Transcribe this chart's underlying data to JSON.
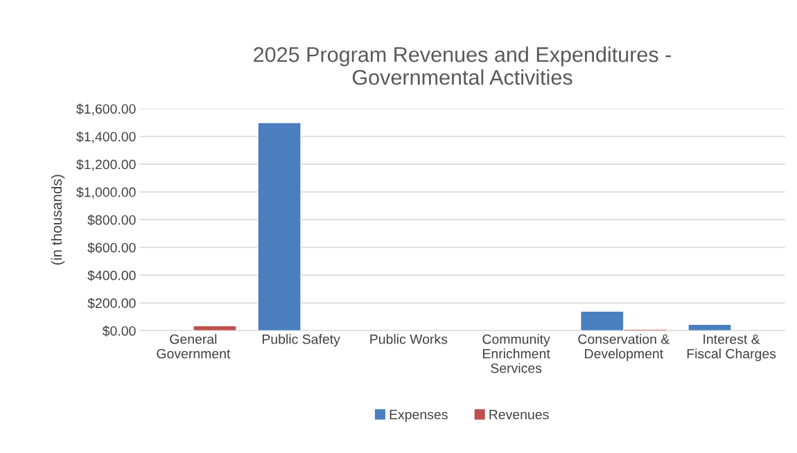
{
  "chart_data": {
    "type": "bar",
    "title": "2025 Program Revenues and Expenditures -\nGovernmental Activities",
    "ylabel": "(in thousands)",
    "categories": [
      "General\nGovernment",
      "Public Safety",
      "Public Works",
      "Community\nEnrichment\nServices",
      "Conservation &\nDevelopment",
      "Interest &\nFiscal Charges"
    ],
    "series": [
      {
        "name": "Expenses",
        "color": "#4a7ebf",
        "values": [
          null,
          1500,
          null,
          null,
          140,
          45
        ]
      },
      {
        "name": "Revenues",
        "color": "#c0504d",
        "values": [
          35,
          null,
          null,
          null,
          10,
          null
        ]
      }
    ],
    "ylim": [
      0,
      1600
    ],
    "yticks": [
      {
        "value": 0,
        "label": "$0.00"
      },
      {
        "value": 200,
        "label": "$200.00"
      },
      {
        "value": 400,
        "label": "$400.00"
      },
      {
        "value": 600,
        "label": "$600.00"
      },
      {
        "value": 800,
        "label": "$800.00"
      },
      {
        "value": 1000,
        "label": "$1,000.00"
      },
      {
        "value": 1200,
        "label": "$1,200.00"
      },
      {
        "value": 1400,
        "label": "$1,400.00"
      },
      {
        "value": 1600,
        "label": "$1,600.00"
      }
    ],
    "grid": "y",
    "legend": "bottom"
  }
}
